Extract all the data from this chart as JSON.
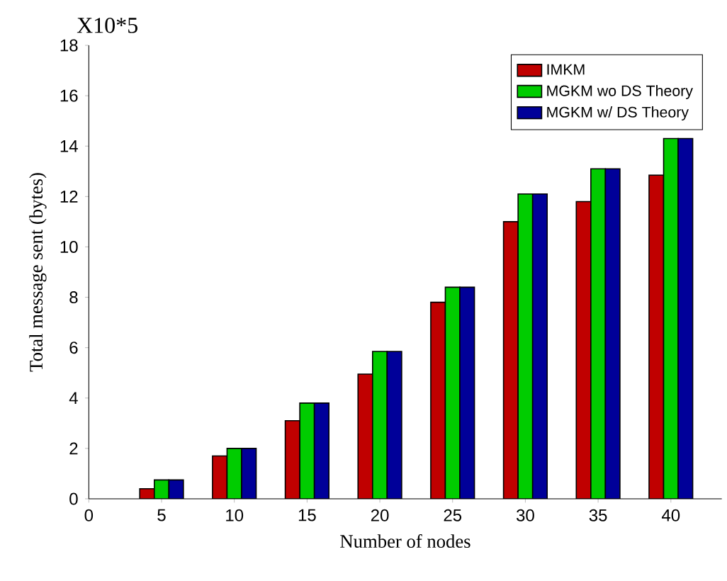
{
  "chart_data": {
    "type": "bar",
    "xlabel": "Number of nodes",
    "ylabel": "Total message sent (bytes)",
    "annotations": [
      "X10*5"
    ],
    "x": [
      5,
      10,
      15,
      20,
      25,
      30,
      35,
      40
    ],
    "series": [
      {
        "name": "IMKM",
        "color": "#c00000",
        "values": [
          0.4,
          1.7,
          3.1,
          4.95,
          7.8,
          11.0,
          11.8,
          12.85
        ]
      },
      {
        "name": "MGKM wo DS Theory",
        "color": "#00cc00",
        "values": [
          0.75,
          2.0,
          3.8,
          5.85,
          8.4,
          12.1,
          13.1,
          14.3
        ]
      },
      {
        "name": "MGKM w/ DS Theory",
        "color": "#000099",
        "values": [
          0.75,
          2.0,
          3.8,
          5.85,
          8.4,
          12.1,
          13.1,
          14.3
        ]
      }
    ],
    "xlim": [
      0,
      43.5
    ],
    "xticks": [
      0,
      5,
      10,
      15,
      20,
      25,
      30,
      35,
      40
    ],
    "ylim": [
      0,
      18
    ],
    "yticks": [
      0,
      2,
      4,
      6,
      8,
      10,
      12,
      14,
      16,
      18
    ],
    "grid": false,
    "legend": "top right"
  }
}
